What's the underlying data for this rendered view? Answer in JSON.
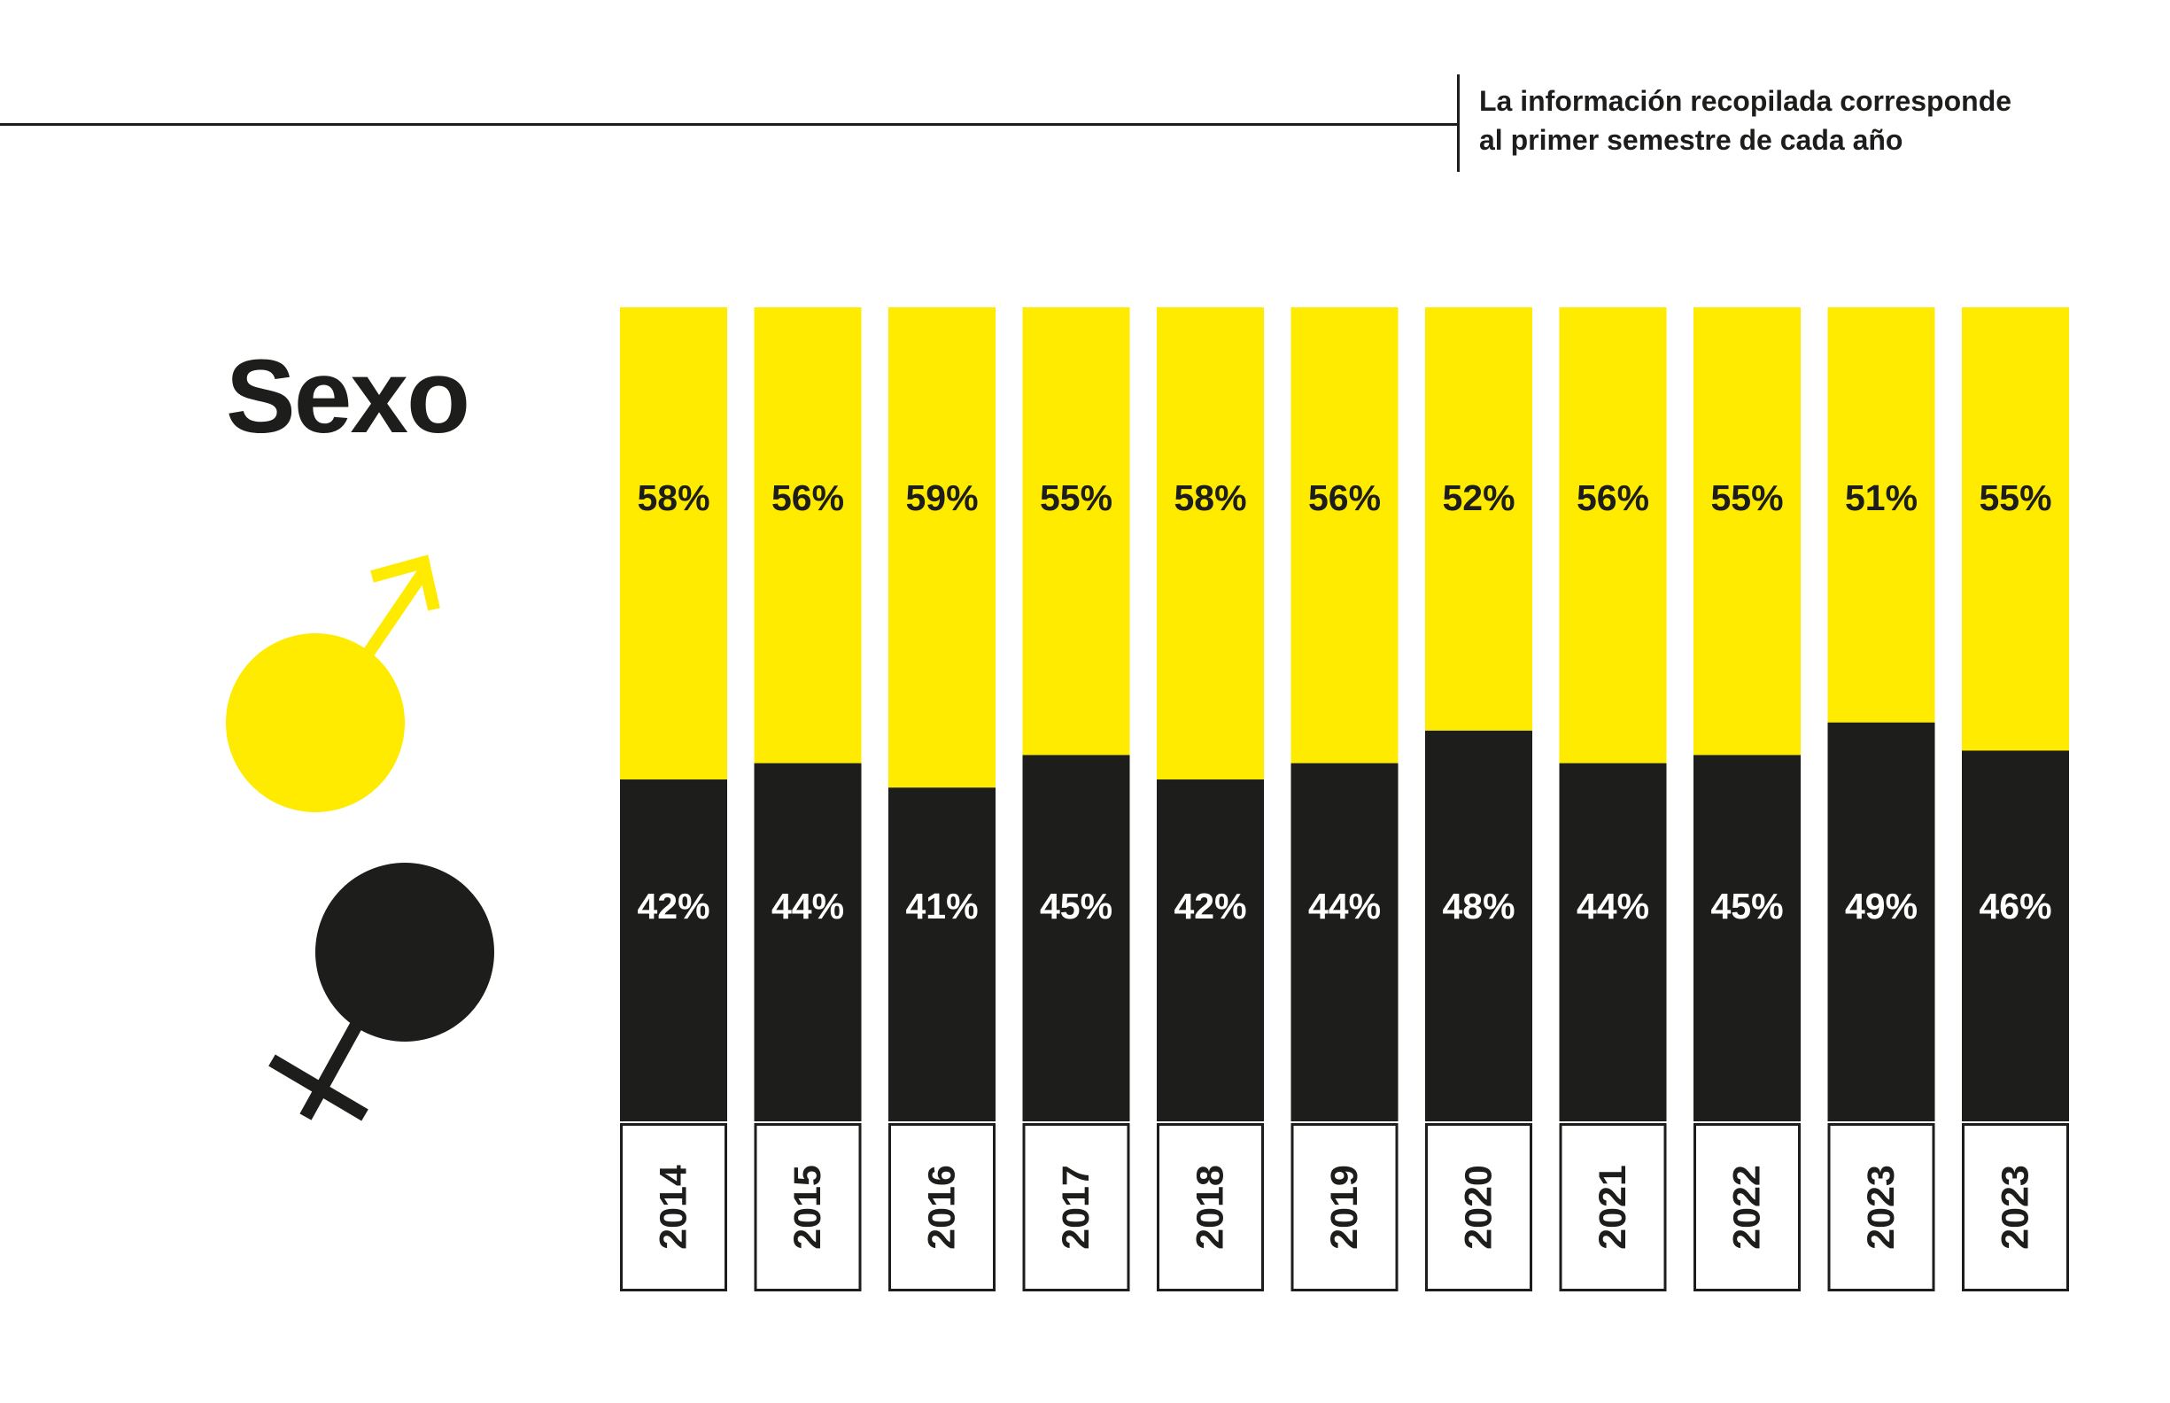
{
  "note": {
    "line1": "La información recopilada corresponde",
    "line2": "al primer semestre de cada año"
  },
  "title": "Sexo",
  "icons": {
    "male": "male-symbol-icon",
    "female": "female-symbol-icon"
  },
  "colors": {
    "male": "#ffeb00",
    "female": "#1d1d1b",
    "year_box": "#ffffff",
    "female_text": "#ffffff",
    "male_text": "#1d1d1b"
  },
  "chart_data": {
    "type": "bar",
    "stacked": true,
    "normalized": true,
    "categories": [
      "2014",
      "2015",
      "2016",
      "2017",
      "2018",
      "2019",
      "2020",
      "2021",
      "2022",
      "2023",
      "2023"
    ],
    "series": [
      {
        "values": [
          58,
          56,
          59,
          55,
          58,
          56,
          52,
          56,
          55,
          51,
          55
        ]
      },
      {
        "values": [
          42,
          44,
          41,
          45,
          42,
          44,
          48,
          44,
          45,
          49,
          46
        ]
      }
    ],
    "labels_top": [
      "58%",
      "56%",
      "59%",
      "55%",
      "58%",
      "56%",
      "52%",
      "56%",
      "55%",
      "51%",
      "55%"
    ],
    "labels_bottom": [
      "42%",
      "44%",
      "41%",
      "45%",
      "42%",
      "44%",
      "48%",
      "44%",
      "45%",
      "49%",
      "46%"
    ],
    "ylim": [
      0,
      100
    ]
  }
}
